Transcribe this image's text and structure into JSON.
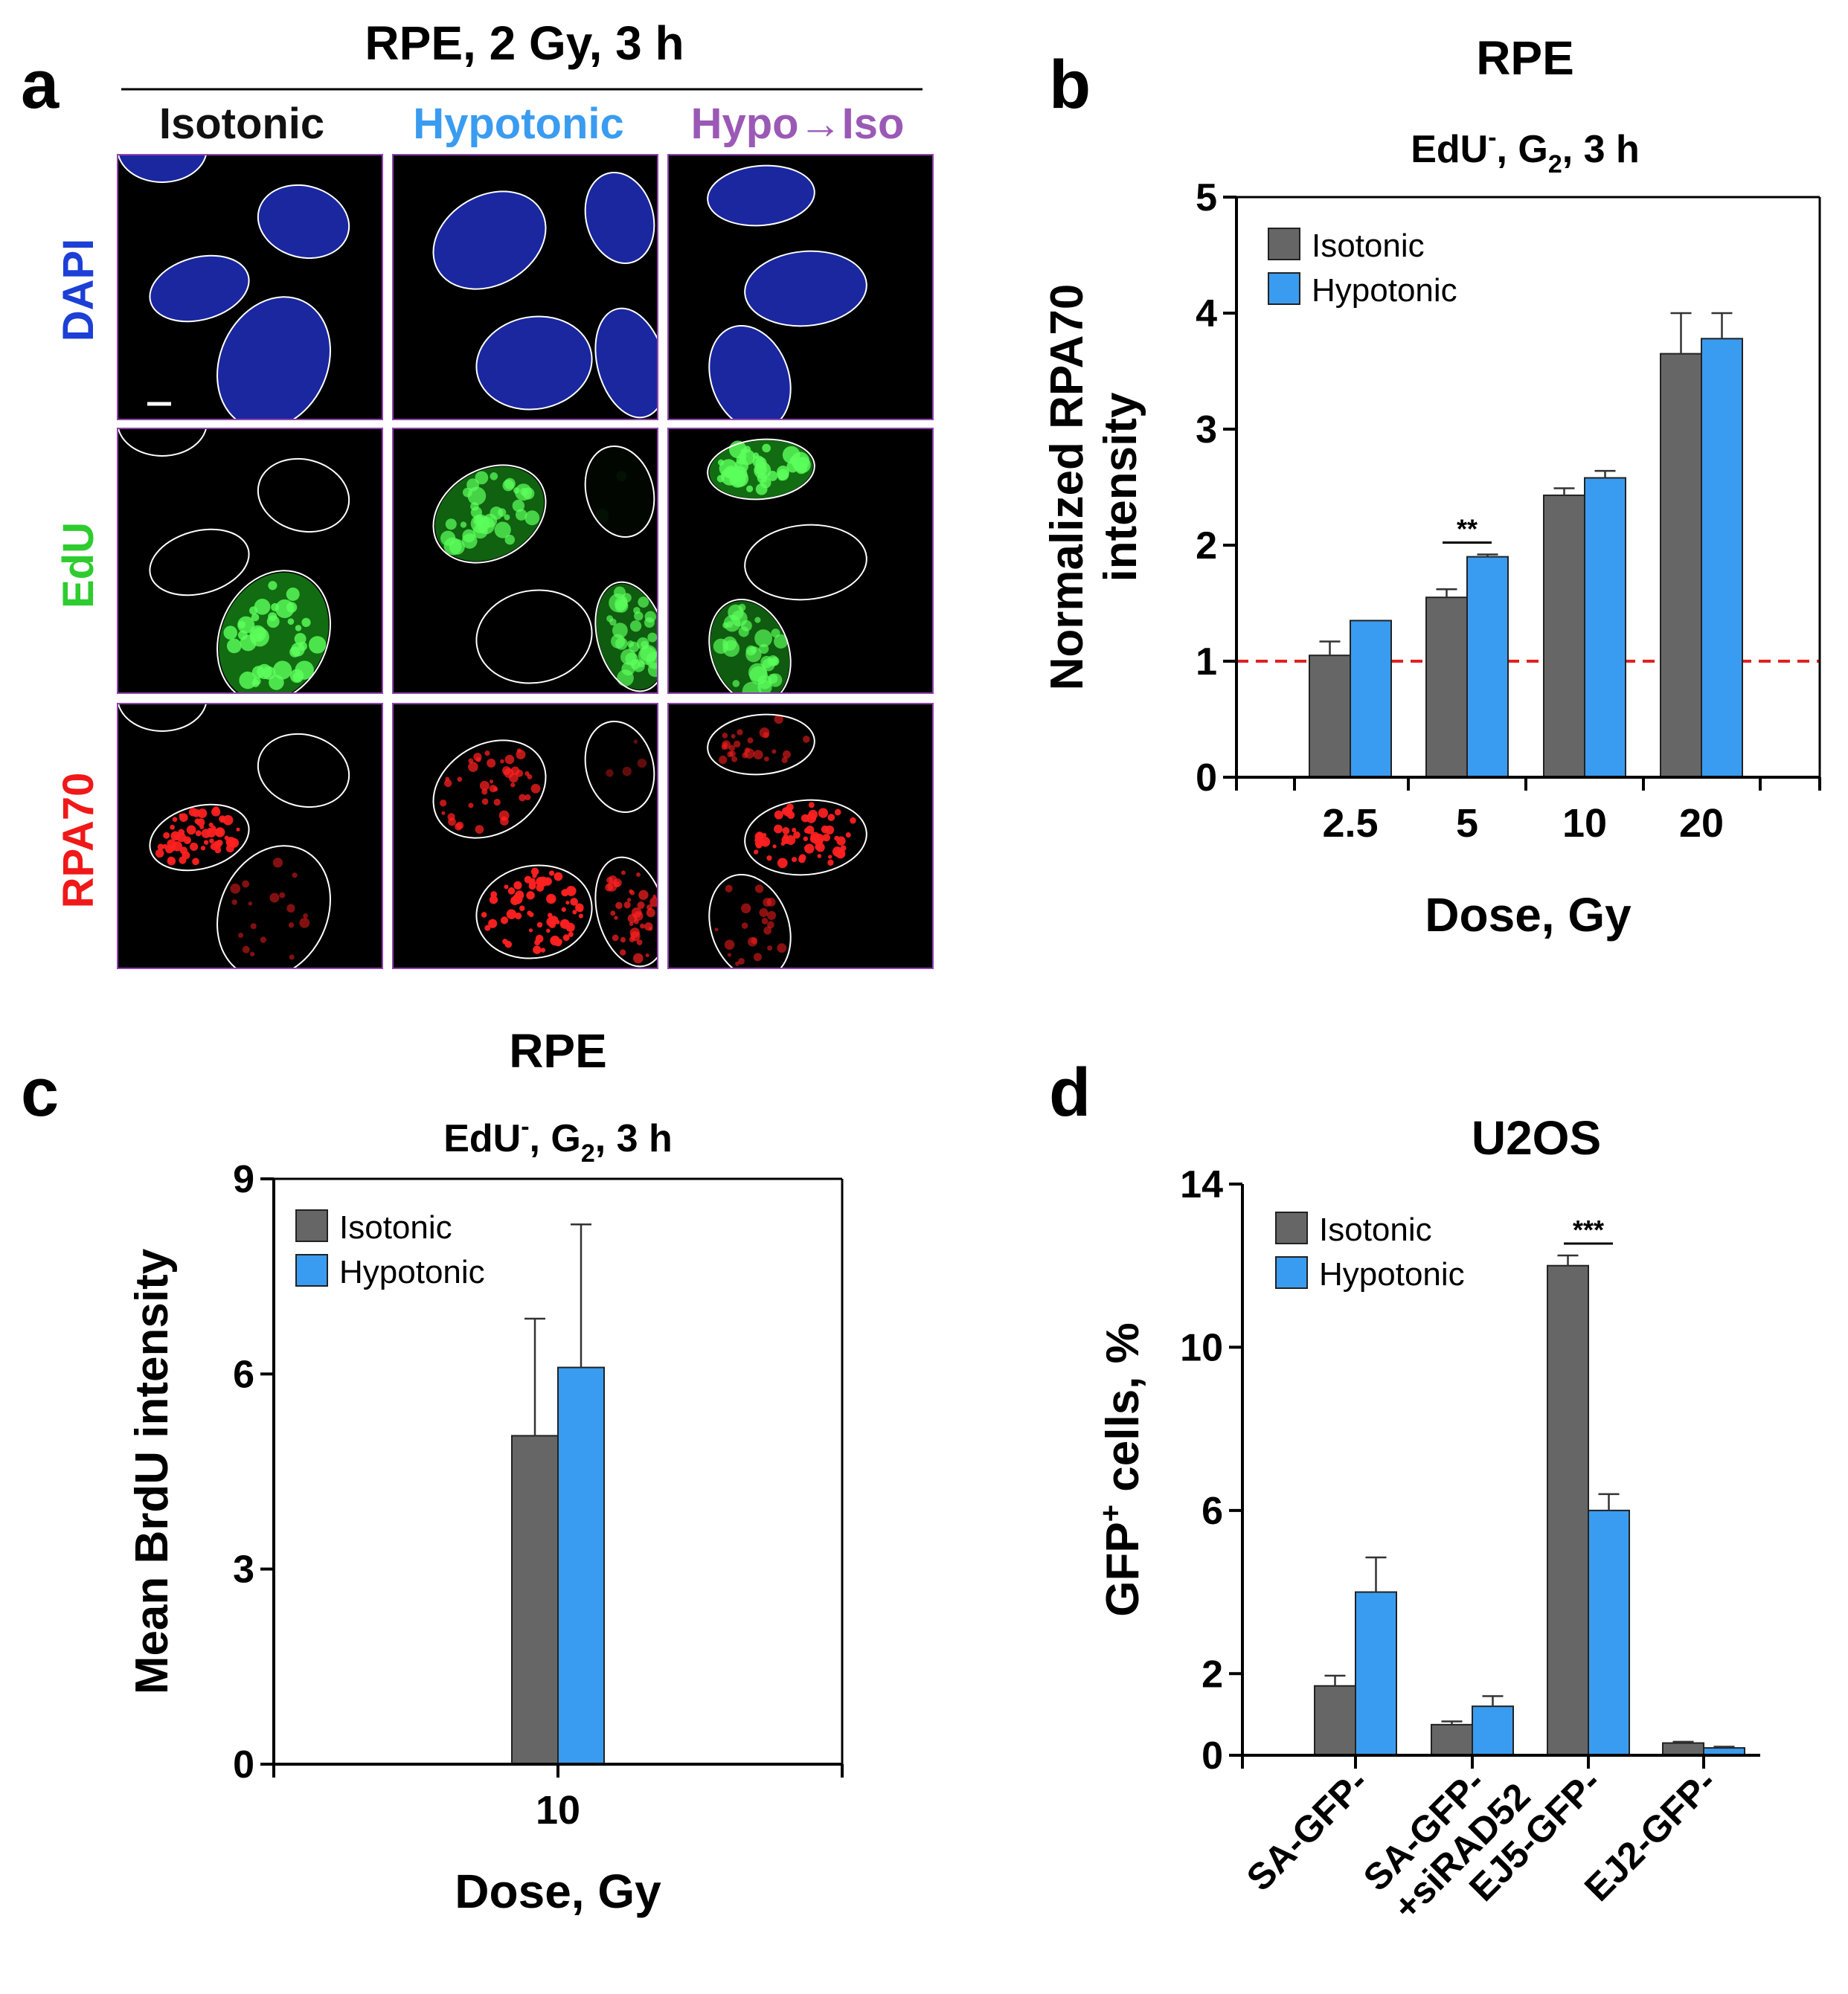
{
  "panel_a": {
    "letter": "a",
    "title": "RPE, 2 Gy, 3 h",
    "columns": [
      {
        "label": "Isotonic",
        "color": "#111111"
      },
      {
        "label": "Hypotonic",
        "color": "#3a9cf0"
      },
      {
        "label": "Hypo→Iso",
        "color": "#9b59b6"
      }
    ],
    "rows": [
      {
        "label": "DAPI",
        "color": "#1c3fd6"
      },
      {
        "label": "EdU",
        "color": "#2ecc2e"
      },
      {
        "label": "RPA70",
        "color": "#f01818"
      }
    ],
    "channel_colors": {
      "DAPI": "#1d2bb0",
      "EdU": "#22d022",
      "RPA70": "#ff2020"
    },
    "nuclei": [
      [
        {
          "dapi": true,
          "edu": 0,
          "rpa": 0
        },
        {
          "dapi": true,
          "edu": 0,
          "rpa": 0.9
        },
        {
          "dapi": true,
          "edu": 0,
          "rpa": 0
        },
        {
          "dapi": true,
          "edu": 0.95,
          "rpa": 0.25
        }
      ],
      [
        {
          "dapi": true,
          "edu": 0.85,
          "rpa": 0.6
        },
        {
          "dapi": true,
          "edu": 0.05,
          "rpa": 0.05
        },
        {
          "dapi": true,
          "edu": 0,
          "rpa": 0.95
        },
        {
          "dapi": true,
          "edu": 0.8,
          "rpa": 0.55
        }
      ],
      [
        {
          "dapi": true,
          "edu": 0.95,
          "rpa": 0.35
        },
        {
          "dapi": true,
          "edu": 0,
          "rpa": 0.9
        },
        {
          "dapi": true,
          "edu": 0.8,
          "rpa": 0.3
        }
      ]
    ]
  },
  "panel_b": {
    "letter": "b"
  },
  "panel_c": {
    "letter": "c"
  },
  "panel_d": {
    "letter": "d"
  },
  "chart_data": [
    {
      "id": "b",
      "type": "bar",
      "title": "RPE",
      "subtitle": {
        "main": "EdU",
        "sup": "-",
        "mid": ", G",
        "sub": "2",
        "end": ", 3 h"
      },
      "xlabel": "Dose, Gy",
      "ylabel": [
        "Normalized RPA70",
        "intensity"
      ],
      "categories": [
        "2.5",
        "5",
        "10",
        "20"
      ],
      "series": [
        {
          "name": "Isotonic",
          "color": "#666666",
          "values": [
            1.05,
            1.55,
            2.43,
            3.65
          ],
          "errors": [
            0.12,
            0.07,
            0.06,
            0.35
          ]
        },
        {
          "name": "Hypotonic",
          "color": "#3a9cf0",
          "values": [
            1.35,
            1.9,
            2.58,
            3.78
          ],
          "errors": [
            0.0,
            0.02,
            0.06,
            0.22
          ]
        }
      ],
      "ylim": [
        0,
        5
      ],
      "yticks": [
        0,
        1,
        2,
        3,
        4,
        5
      ],
      "reference_line": {
        "y": 1,
        "color": "#e02020",
        "style": "dashed"
      },
      "significance": [
        {
          "category_index": 1,
          "label": "**"
        }
      ],
      "legend": "top-left"
    },
    {
      "id": "c",
      "type": "bar",
      "title": "RPE",
      "subtitle": {
        "main": "EdU",
        "sup": "-",
        "mid": ", G",
        "sub": "2",
        "end": ", 3 h"
      },
      "xlabel": "Dose, Gy",
      "ylabel": [
        "Mean BrdU intensity"
      ],
      "categories": [
        "10"
      ],
      "series": [
        {
          "name": "Isotonic",
          "color": "#666666",
          "values": [
            5.05
          ],
          "errors": [
            1.8
          ]
        },
        {
          "name": "Hypotonic",
          "color": "#3a9cf0",
          "values": [
            6.1
          ],
          "errors": [
            2.2
          ]
        }
      ],
      "ylim": [
        0,
        9
      ],
      "yticks": [
        0,
        3,
        6,
        9
      ],
      "legend": "top-left"
    },
    {
      "id": "d",
      "type": "bar",
      "title": "U2OS",
      "xlabel": "",
      "ylabel": {
        "main": "GFP",
        "sup": "+",
        "end": " cells, %"
      },
      "categories": [
        "SA-GFP-",
        "SA-GFP-\n+siRAD52",
        "EJ5-GFP-",
        "EJ2-GFP-"
      ],
      "series": [
        {
          "name": "Isotonic",
          "color": "#666666",
          "values": [
            1.7,
            0.75,
            12.0,
            0.3
          ],
          "errors": [
            0.25,
            0.08,
            0.25,
            0.03
          ]
        },
        {
          "name": "Hypotonic",
          "color": "#3a9cf0",
          "values": [
            4.0,
            1.2,
            6.0,
            0.18
          ],
          "errors": [
            0.85,
            0.25,
            0.4,
            0.03
          ]
        }
      ],
      "ylim": [
        0,
        14
      ],
      "yticks": [
        0,
        2,
        6,
        10,
        14
      ],
      "significance": [
        {
          "category_index": 2,
          "label": "***"
        }
      ],
      "legend": "top-left"
    }
  ]
}
